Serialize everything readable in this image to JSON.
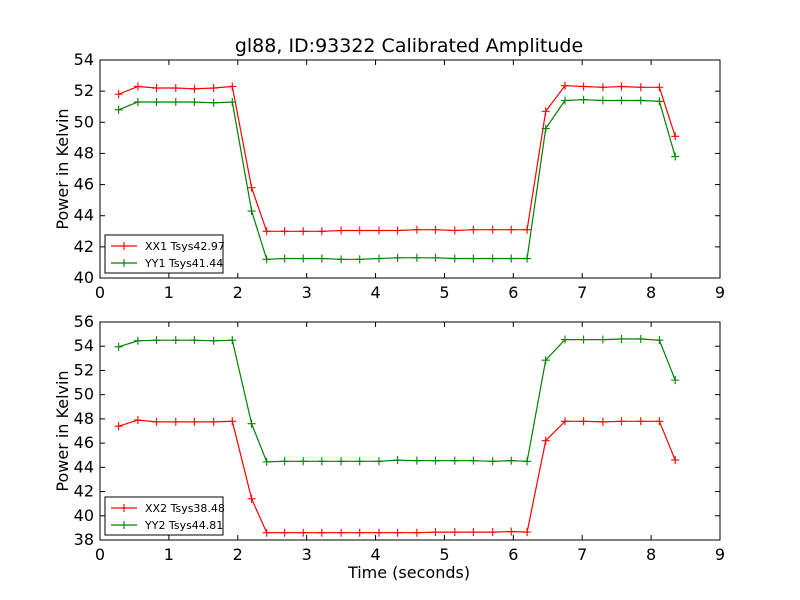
{
  "title": "gl88, ID:93322 Calibrated Amplitude",
  "xlabel": "Time (seconds)",
  "colors": {
    "red": "#ff0000",
    "green": "#008000"
  },
  "chart_data": [
    {
      "type": "line",
      "ylabel": "Power in Kelvin",
      "xlabel": "",
      "xlim": [
        0,
        9
      ],
      "ylim": [
        40,
        54
      ],
      "xticks": [
        "0",
        "1",
        "2",
        "3",
        "4",
        "5",
        "6",
        "7",
        "8",
        "9"
      ],
      "yticks": [
        "40",
        "42",
        "44",
        "46",
        "48",
        "50",
        "52",
        "54"
      ],
      "legend_position": "lower-left",
      "x": [
        0.27,
        0.55,
        0.82,
        1.1,
        1.37,
        1.65,
        1.92,
        2.2,
        2.42,
        2.68,
        2.95,
        3.22,
        3.5,
        3.77,
        4.05,
        4.32,
        4.6,
        4.87,
        5.15,
        5.42,
        5.7,
        5.97,
        6.2,
        6.47,
        6.75,
        7.02,
        7.3,
        7.57,
        7.85,
        8.12,
        8.35
      ],
      "series": [
        {
          "name": "XX1 Tsys42.97",
          "color": "#ff0000",
          "values": [
            51.8,
            52.3,
            52.2,
            52.2,
            52.15,
            52.2,
            52.3,
            45.8,
            43.0,
            43.0,
            43.0,
            43.0,
            43.05,
            43.05,
            43.05,
            43.05,
            43.1,
            43.1,
            43.05,
            43.1,
            43.1,
            43.1,
            43.1,
            50.7,
            52.35,
            52.3,
            52.25,
            52.3,
            52.25,
            52.25,
            49.1
          ]
        },
        {
          "name": "YY1 Tsys41.44",
          "color": "#008000",
          "values": [
            50.8,
            51.3,
            51.3,
            51.3,
            51.3,
            51.25,
            51.3,
            44.3,
            41.2,
            41.25,
            41.25,
            41.25,
            41.2,
            41.2,
            41.25,
            41.3,
            41.3,
            41.3,
            41.25,
            41.25,
            41.25,
            41.25,
            41.25,
            49.6,
            51.4,
            51.45,
            51.4,
            51.4,
            51.4,
            51.35,
            47.8
          ]
        }
      ]
    },
    {
      "type": "line",
      "ylabel": "Power in Kelvin",
      "xlabel": "Time (seconds)",
      "xlim": [
        0,
        9
      ],
      "ylim": [
        38,
        56
      ],
      "xticks": [
        "0",
        "1",
        "2",
        "3",
        "4",
        "5",
        "6",
        "7",
        "8",
        "9"
      ],
      "yticks": [
        "38",
        "40",
        "42",
        "44",
        "46",
        "48",
        "50",
        "52",
        "54",
        "56"
      ],
      "legend_position": "lower-left",
      "x": [
        0.27,
        0.55,
        0.82,
        1.1,
        1.37,
        1.65,
        1.92,
        2.2,
        2.42,
        2.68,
        2.95,
        3.22,
        3.5,
        3.77,
        4.05,
        4.32,
        4.6,
        4.87,
        5.15,
        5.42,
        5.7,
        5.97,
        6.2,
        6.47,
        6.75,
        7.02,
        7.3,
        7.57,
        7.85,
        8.12,
        8.35
      ],
      "series": [
        {
          "name": "XX2 Tsys38.48",
          "color": "#ff0000",
          "values": [
            47.4,
            47.9,
            47.75,
            47.75,
            47.75,
            47.75,
            47.8,
            41.4,
            38.6,
            38.6,
            38.6,
            38.6,
            38.6,
            38.6,
            38.6,
            38.6,
            38.6,
            38.65,
            38.65,
            38.65,
            38.65,
            38.7,
            38.65,
            46.2,
            47.8,
            47.8,
            47.75,
            47.8,
            47.8,
            47.8,
            44.6
          ]
        },
        {
          "name": "YY2 Tsys44.81",
          "color": "#008000",
          "values": [
            53.95,
            54.45,
            54.5,
            54.5,
            54.5,
            54.45,
            54.5,
            47.6,
            44.45,
            44.5,
            44.5,
            44.5,
            44.5,
            44.5,
            44.5,
            44.6,
            44.55,
            44.55,
            44.55,
            44.55,
            44.5,
            44.55,
            44.5,
            52.85,
            54.55,
            54.55,
            54.55,
            54.6,
            54.6,
            54.5,
            51.2
          ]
        }
      ]
    }
  ]
}
